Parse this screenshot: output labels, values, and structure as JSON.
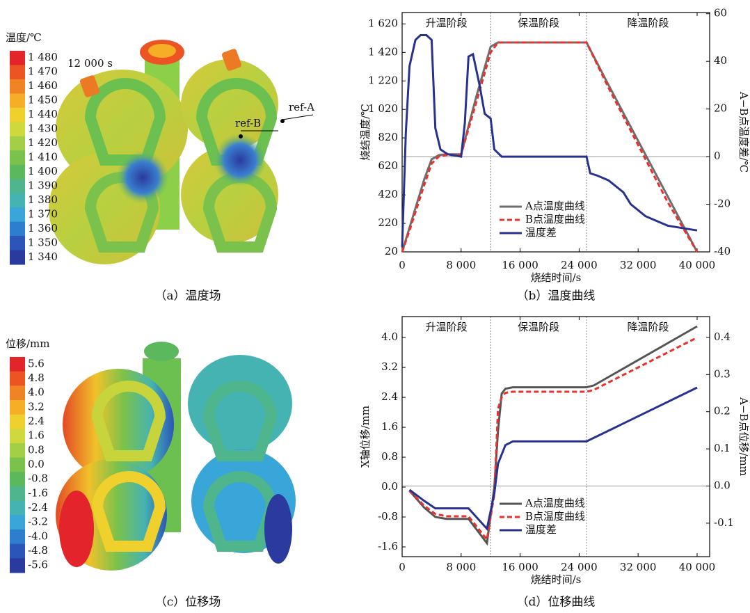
{
  "chart_data": [
    {
      "type": "colorbar",
      "title": "温度/℃",
      "lim": [
        1340,
        1480
      ],
      "ticks": [
        {
          "value": 1480,
          "label": "1 480"
        },
        {
          "value": 1470,
          "label": "1 470"
        },
        {
          "value": 1460,
          "label": "1 460"
        },
        {
          "value": 1450,
          "label": "1 450"
        },
        {
          "value": 1440,
          "label": "1 440"
        },
        {
          "value": 1430,
          "label": "1 430"
        },
        {
          "value": 1420,
          "label": "1 420"
        },
        {
          "value": 1410,
          "label": "1 410"
        },
        {
          "value": 1400,
          "label": "1 400"
        },
        {
          "value": 1390,
          "label": "1 390"
        },
        {
          "value": 1380,
          "label": "1 380"
        },
        {
          "value": 1370,
          "label": "1 370"
        },
        {
          "value": 1360,
          "label": "1 360"
        },
        {
          "value": 1350,
          "label": "1 350"
        },
        {
          "value": 1340,
          "label": "1 340"
        }
      ],
      "colors": [
        "#e3242b",
        "#ec5424",
        "#f08424",
        "#f5ae25",
        "#f0d02c",
        "#cfd83c",
        "#a3cf46",
        "#7ac24c",
        "#5bb85c",
        "#4eb58c",
        "#45b3b2",
        "#38a6d8",
        "#2e7ecf",
        "#2b55b8",
        "#2a3a9e"
      ],
      "annotations": [
        "12 000 s",
        "ref-B",
        "ref-A"
      ],
      "caption": "（a）温度场"
    },
    {
      "type": "line",
      "caption": "（b）温度曲线",
      "x_label": "烧结时间/s",
      "y_label": "烧结温度/℃",
      "y2_label": "A−B点温度差/℃",
      "phases": [
        "升温阶段",
        "保温阶段",
        "降温阶段"
      ],
      "phase_boundaries": [
        12000,
        25000
      ],
      "xlim": [
        0,
        41700
      ],
      "xticks": [
        0,
        {
          "value": 8000,
          "label": "8 000"
        },
        {
          "value": 16000,
          "label": "16 000"
        },
        {
          "value": 24000,
          "label": "24 000"
        },
        {
          "value": 32000,
          "label": "32 000"
        },
        {
          "value": 40000,
          "label": "40 000"
        }
      ],
      "ylim": [
        20,
        1700
      ],
      "yticks": [
        20,
        220,
        420,
        620,
        820,
        {
          "value": 1020,
          "label": "1 020"
        },
        {
          "value": 1220,
          "label": "1 220"
        },
        {
          "value": 1420,
          "label": "1 420"
        },
        {
          "value": 1620,
          "label": "1 620"
        }
      ],
      "y2lim": [
        -40,
        60.5
      ],
      "y2ticks": [
        -40,
        -20,
        0,
        20,
        40,
        60
      ],
      "series": [
        {
          "name": "A点温度曲线",
          "color": "#6e6e6e",
          "dash": false,
          "x": [
            0,
            1000,
            2000,
            3000,
            4000,
            5000,
            6000,
            7000,
            8000,
            10000,
            12000,
            13000,
            24000,
            25000,
            28000,
            32000,
            36000,
            40000
          ],
          "values": [
            20,
            190,
            360,
            530,
            670,
            700,
            705,
            705,
            705,
            1100,
            1460,
            1490,
            1490,
            1490,
            1190,
            800,
            410,
            20
          ]
        },
        {
          "name": "B点温度曲线",
          "color": "#e8322e",
          "dash": true,
          "x": [
            0,
            1000,
            2000,
            3000,
            4000,
            5000,
            6000,
            7000,
            8000,
            10000,
            12000,
            13000,
            24000,
            25000,
            28000,
            32000,
            36000,
            40000
          ],
          "values": [
            20,
            170,
            330,
            490,
            640,
            690,
            700,
            700,
            705,
            1060,
            1420,
            1490,
            1490,
            1490,
            1170,
            770,
            370,
            20
          ]
        },
        {
          "name": "温度差",
          "color": "#27318f",
          "dash": false,
          "axis": "y2",
          "x": [
            0,
            500,
            1000,
            1800,
            2500,
            3300,
            4000,
            4500,
            5200,
            6200,
            8000,
            8500,
            9000,
            9600,
            10500,
            11200,
            12000,
            12500,
            13500,
            25000,
            25500,
            26500,
            28000,
            30000,
            31000,
            33000,
            36000,
            38000,
            40000
          ],
          "values": [
            -38,
            10,
            38,
            49,
            51,
            51,
            49,
            12,
            3,
            1,
            0,
            14,
            42,
            43,
            30,
            18,
            16,
            3,
            0,
            0,
            -7,
            -8,
            -10,
            -15,
            -20,
            -25,
            -29,
            -30,
            -31
          ]
        }
      ]
    },
    {
      "type": "colorbar",
      "title": "位移/mm",
      "lim": [
        -5.6,
        5.6
      ],
      "ticks": [
        5.6,
        4.8,
        {
          "value": 4,
          "label": "4.0"
        },
        3.2,
        2.4,
        1.6,
        0.8,
        {
          "value": 0,
          "label": "0.0"
        },
        -0.8,
        -1.6,
        -2.4,
        -3.2,
        {
          "value": -4,
          "label": "-4.0"
        },
        -4.8,
        -5.6
      ],
      "colors": [
        "#e3242b",
        "#ec5424",
        "#f08424",
        "#f5ae25",
        "#f0d02c",
        "#cfd83c",
        "#a3cf46",
        "#7ac24c",
        "#5bb85c",
        "#4eb58c",
        "#45b3b2",
        "#38a6d8",
        "#2e7ecf",
        "#2b55b8",
        "#2a3a9e"
      ],
      "caption": "（c）位移场"
    },
    {
      "type": "line",
      "caption": "（d）位移曲线",
      "x_label": "烧结时间/s",
      "y_label": "X轴位移/mm",
      "y2_label": "A−B点位移/mm",
      "phases": [
        "升温阶段",
        "保温阶段",
        "降温阶段"
      ],
      "phase_boundaries": [
        12000,
        25000
      ],
      "xlim": [
        0,
        41700
      ],
      "xticks": [
        0,
        {
          "value": 8000,
          "label": "8 000"
        },
        {
          "value": 16000,
          "label": "16 000"
        },
        {
          "value": 24000,
          "label": "24 000"
        },
        {
          "value": 32000,
          "label": "32 000"
        },
        {
          "value": 40000,
          "label": "40 000"
        }
      ],
      "ylim": [
        -1.86,
        4.56
      ],
      "yticks": [
        -1.6,
        -0.8,
        {
          "value": 0,
          "label": "0.0"
        },
        0.8,
        1.6,
        2.4,
        3.2,
        {
          "value": 4,
          "label": "4.0"
        }
      ],
      "y2lim": [
        -0.19,
        0.456
      ],
      "y2ticks": [
        -0.1,
        {
          "value": 0,
          "label": "0.0"
        },
        0.1,
        0.2,
        0.3,
        0.4
      ],
      "series": [
        {
          "name": "A点温度曲线",
          "color": "#555555",
          "dash": false,
          "x": [
            1000,
            3000,
            4500,
            6000,
            9000,
            11500,
            12500,
            13000,
            13500,
            14000,
            15000,
            25000,
            26000,
            40000
          ],
          "values": [
            -0.1,
            -0.55,
            -0.8,
            -0.85,
            -0.85,
            -1.5,
            0,
            1.5,
            2.5,
            2.63,
            2.67,
            2.67,
            2.72,
            4.3
          ]
        },
        {
          "name": "B点温度曲线",
          "color": "#e8322e",
          "dash": true,
          "x": [
            1000,
            3000,
            4500,
            6000,
            9000,
            11500,
            12500,
            13000,
            13500,
            14000,
            15000,
            25000,
            26000,
            40000
          ],
          "values": [
            -0.1,
            -0.5,
            -0.72,
            -0.78,
            -0.78,
            -1.4,
            -0.2,
            2.1,
            2.4,
            2.52,
            2.55,
            2.55,
            2.6,
            4.0
          ]
        },
        {
          "name": "温度差",
          "color": "#27318f",
          "dash": false,
          "axis": "y2",
          "x": [
            1000,
            3000,
            4500,
            6000,
            9000,
            11500,
            12500,
            13000,
            14000,
            15000,
            25000,
            40000
          ],
          "values": [
            -0.01,
            -0.04,
            -0.06,
            -0.06,
            -0.06,
            -0.115,
            -0.02,
            0.06,
            0.11,
            0.12,
            0.12,
            0.265
          ]
        }
      ]
    }
  ]
}
